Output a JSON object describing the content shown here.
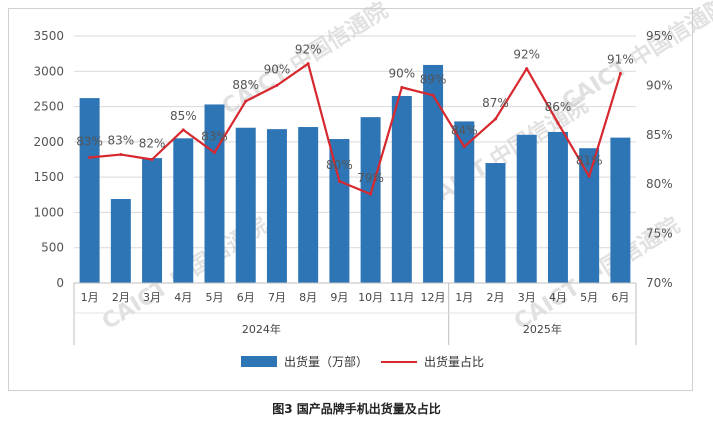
{
  "caption": "图3   国产品牌手机出货量及占比",
  "legend": {
    "bar_label": "出货量（万部）",
    "line_label": "出货量占比"
  },
  "watermark": "CAICT 中国信通院",
  "colors": {
    "bar": "#2e75b6",
    "line": "#d6282e",
    "grid": "#d9d9d9"
  },
  "chart_data": {
    "type": "bar",
    "categories": [
      "1月",
      "2月",
      "3月",
      "4月",
      "5月",
      "6月",
      "7月",
      "8月",
      "9月",
      "10月",
      "11月",
      "12月",
      "1月",
      "2月",
      "3月",
      "4月",
      "5月",
      "6月"
    ],
    "groups": [
      {
        "label": "2024年",
        "from": 0,
        "to": 11
      },
      {
        "label": "2025年",
        "from": 12,
        "to": 17
      }
    ],
    "ylim": [
      0,
      3500
    ],
    "yticks": [
      "0",
      "500",
      "1000",
      "1500",
      "2000",
      "2500",
      "3000",
      "3500"
    ],
    "y2lim": [
      70,
      95
    ],
    "y2ticks": [
      "70%",
      "75%",
      "80%",
      "85%",
      "90%",
      "95%"
    ],
    "series": [
      {
        "name": "出货量（万部）",
        "type": "bar",
        "values": [
          2620,
          1190,
          1770,
          2050,
          2530,
          2200,
          2180,
          2210,
          2040,
          2350,
          2650,
          3090,
          2290,
          1700,
          2100,
          2140,
          1910,
          2060
        ]
      },
      {
        "name": "出货量占比",
        "type": "line",
        "axis": "right",
        "values": [
          82.7,
          83.0,
          82.5,
          85.5,
          83.2,
          88.4,
          90.0,
          92.2,
          80.3,
          79.0,
          89.8,
          89.0,
          83.8,
          86.6,
          91.7,
          86.2,
          80.8,
          91.2
        ],
        "labels": [
          "83%",
          "83%",
          "82%",
          "85%",
          "83%",
          "88%",
          "90%",
          "92%",
          "80%",
          "79%",
          "90%",
          "89%",
          "84%",
          "87%",
          "92%",
          "86%",
          "81%",
          "91%"
        ]
      }
    ]
  }
}
